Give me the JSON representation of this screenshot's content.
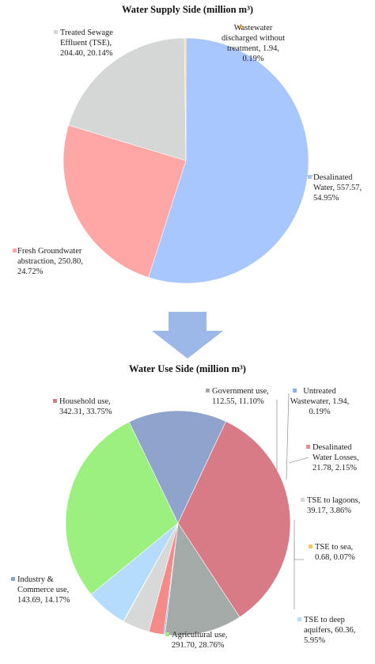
{
  "chart_data": [
    {
      "type": "pie",
      "title": "Water Supply Side (million m³)",
      "unit": "million m³",
      "slices": [
        {
          "name": "Desalinated Water",
          "value": 557.57,
          "percent": 54.95,
          "color": "#a8c6ff",
          "label_lines": [
            "Desalinated",
            "Water, 557.57,",
            "54.95%"
          ]
        },
        {
          "name": "Fresh Groundwater abstraction",
          "value": 250.8,
          "percent": 24.72,
          "color": "#ffa6a6",
          "label_lines": [
            "Fresh Groundwater",
            "abstraction, 250.80,",
            "24.72%"
          ]
        },
        {
          "name": "Treated Sewage Effluent (TSE)",
          "value": 204.4,
          "percent": 20.14,
          "color": "#d4d7d6",
          "label_lines": [
            "Treated Sewage",
            "Effluent (TSE),",
            "204.40, 20.14%"
          ]
        },
        {
          "name": "Wastewater discharged without treatment",
          "value": 1.94,
          "percent": 0.19,
          "color": "#fbd28a",
          "label_lines": [
            "Wastewater",
            "discharged without",
            "treatment, 1.94,",
            "0.19%"
          ]
        }
      ]
    },
    {
      "type": "pie",
      "title": "Water Use Side (million m³)",
      "unit": "million m³",
      "slices": [
        {
          "name": "Household use",
          "value": 342.31,
          "percent": 33.75,
          "color": "#d97b86",
          "label_lines": [
            "Household use,",
            "342.31, 33.75%"
          ]
        },
        {
          "name": "Government use",
          "value": 112.55,
          "percent": 11.1,
          "color": "#a3aaa8",
          "label_lines": [
            "Government use,",
            "112.55, 11.10%"
          ]
        },
        {
          "name": "Untreated Wastewater",
          "value": 1.94,
          "percent": 0.19,
          "color": "#8cb0ea",
          "label_lines": [
            "Untreated",
            "Wastewater, 1.94,",
            "0.19%"
          ]
        },
        {
          "name": "Desalinated Water Losses",
          "value": 21.78,
          "percent": 2.15,
          "color": "#f48a8a",
          "label_lines": [
            "Desalinated",
            "Water Losses,",
            "21.78, 2.15%"
          ]
        },
        {
          "name": "TSE to lagoons",
          "value": 39.17,
          "percent": 3.86,
          "color": "#d7d9d8",
          "label_lines": [
            "TSE to lagoons,",
            "39.17, 3.86%"
          ]
        },
        {
          "name": "TSE to sea",
          "value": 0.68,
          "percent": 0.07,
          "color": "#f6c873",
          "label_lines": [
            "TSE to sea,",
            "0.68, 0.07%"
          ]
        },
        {
          "name": "TSE to deep aquifers",
          "value": 60.36,
          "percent": 5.95,
          "color": "#b5dcfc",
          "label_lines": [
            "TSE to deep",
            "aquifers, 60.36,",
            "5.95%"
          ]
        },
        {
          "name": "Agricultural use",
          "value": 291.7,
          "percent": 28.76,
          "color": "#9cf07f",
          "label_lines": [
            "Agricultural use,",
            "291.70, 28.76%"
          ]
        },
        {
          "name": "Industry & Commerce use",
          "value": 143.69,
          "percent": 14.17,
          "color": "#8ea4cc",
          "label_lines": [
            "Industry &",
            "Commerce use,",
            "143.69, 14.17%"
          ]
        }
      ]
    }
  ],
  "colors": {
    "arrow": "#9bb8e8",
    "leader": "#9a9a9a",
    "background": "#ffffff"
  }
}
